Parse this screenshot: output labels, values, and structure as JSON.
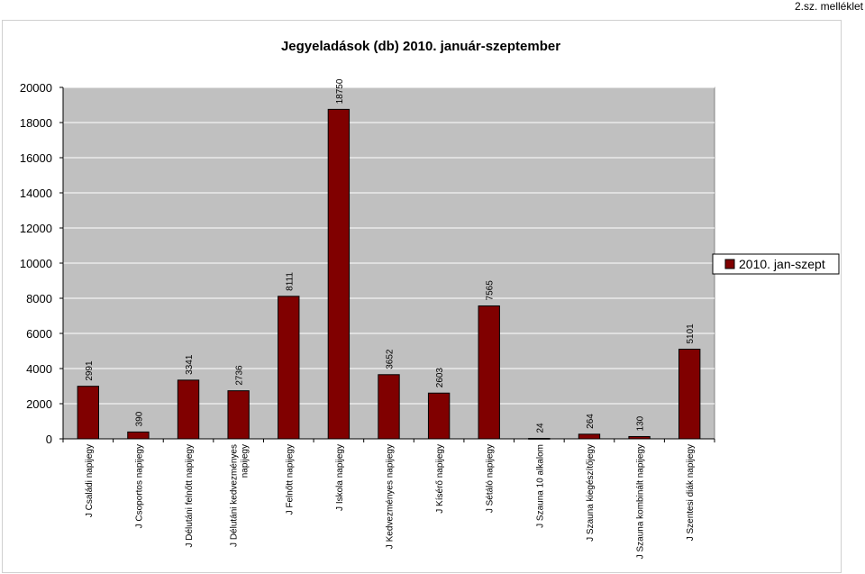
{
  "page": {
    "corner_note": "2.sz. melléklet"
  },
  "chart_data": {
    "type": "bar",
    "title": "Jegyeladások (db) 2010. január-szeptember",
    "xlabel": "",
    "ylabel": "",
    "ylim": [
      0,
      20000
    ],
    "yticks": [
      0,
      2000,
      4000,
      6000,
      8000,
      10000,
      12000,
      14000,
      16000,
      18000,
      20000
    ],
    "grid": true,
    "legend_position": "right",
    "categories": [
      "J Családi napijegy",
      "J Csoportos napijegy",
      "J Délutáni felnőtt napijegy",
      "J Délutáni kedvezményes napijegy",
      "J Felnőtt napijegy",
      "J Iskola napijegy",
      "J Kedvezményes napijegy",
      "J Kísérő napijegy",
      "J Sétáló napijegy",
      "J Szauna 10 alkalom",
      "J Szauna kiegészítőjegy",
      "J Szauna kombinált napijegy",
      "J Szentesi diák napijegy"
    ],
    "series": [
      {
        "name": "2010. jan-szept",
        "color": "#800000",
        "values": [
          2991,
          390,
          3341,
          2736,
          8111,
          18750,
          3652,
          2603,
          7565,
          24,
          264,
          130,
          5101
        ]
      }
    ],
    "colors": {
      "plot_background": "#c0c0c0",
      "bar": "#800000",
      "gridline": "#ffffff"
    }
  }
}
